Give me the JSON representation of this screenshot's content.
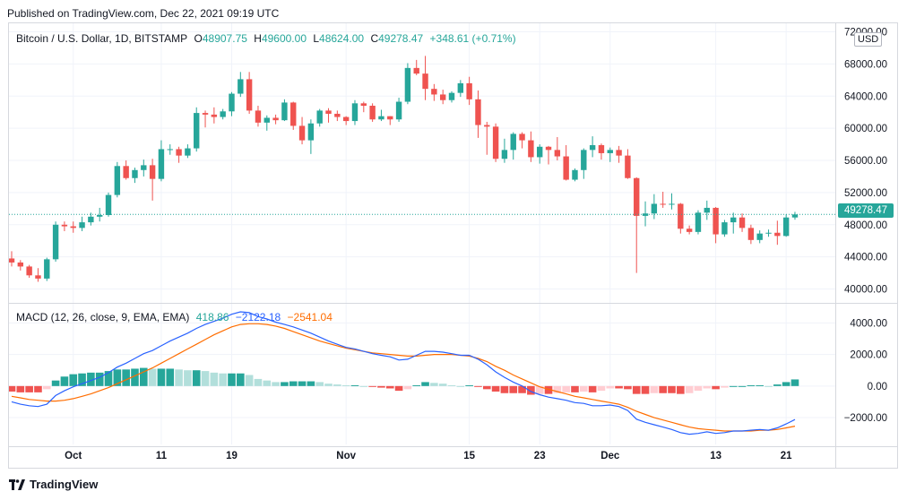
{
  "header": {
    "published": "Published on TradingView.com, Dec 22, 2021 09:19 UTC"
  },
  "legend_price": {
    "symbol": "Bitcoin / U.S. Dollar, 1D, BITSTAMP",
    "o_label": "O",
    "o_value": "48907.75",
    "h_label": "H",
    "h_value": "49600.00",
    "l_label": "L",
    "l_value": "48624.00",
    "c_label": "C",
    "c_value": "49278.47",
    "change": "+348.61 (+0.71%)"
  },
  "legend_macd": {
    "name": "MACD (12, 26, close, 9, EMA, EMA)",
    "histogram": "418.86",
    "macd": "−2122.18",
    "signal": "−2541.04"
  },
  "currency": "USD",
  "last_price_tag": "49278.47",
  "footer": {
    "brand": "TradingView"
  },
  "colors": {
    "up": "#26a69a",
    "down": "#ef5350",
    "up_light": "#b2dfdb",
    "down_light": "#ffcdd2",
    "macd_line": "#2962ff",
    "signal_line": "#ff6d00",
    "grid": "#f0f3fa"
  },
  "chart_data": [
    {
      "type": "candlestick",
      "title": "Bitcoin / U.S. Dollar, 1D, BITSTAMP",
      "ylim": [
        38500,
        72500
      ],
      "y_ticks": [
        72000,
        68000,
        64000,
        60000,
        56000,
        52000,
        48000,
        44000,
        40000
      ],
      "y_tick_labels": [
        "72000.00",
        "68000.00",
        "64000.00",
        "60000.00",
        "56000.00",
        "52000.00",
        "48000.00",
        "44000.00",
        "40000.00"
      ],
      "last_price": 49278.47,
      "x_tick_labels": [
        {
          "label": "Oct",
          "index": 7
        },
        {
          "label": "11",
          "index": 17
        },
        {
          "label": "19",
          "index": 25
        },
        {
          "label": "Nov",
          "index": 38
        },
        {
          "label": "15",
          "index": 52
        },
        {
          "label": "23",
          "index": 60
        },
        {
          "label": "Dec",
          "index": 68
        },
        {
          "label": "13",
          "index": 80
        },
        {
          "label": "21",
          "index": 88
        }
      ],
      "series": [
        [
          43800,
          43300,
          44700,
          42800
        ],
        [
          43300,
          42800,
          43600,
          42300
        ],
        [
          42800,
          41700,
          43000,
          41400
        ],
        [
          41700,
          41300,
          42600,
          40900
        ],
        [
          41300,
          43700,
          43900,
          41000
        ],
        [
          43700,
          48000,
          48400,
          43400
        ],
        [
          48000,
          47800,
          48400,
          47200
        ],
        [
          47800,
          47600,
          48400,
          47000
        ],
        [
          47600,
          48300,
          49000,
          47200
        ],
        [
          48300,
          49000,
          49500,
          47900
        ],
        [
          49000,
          49200,
          50100,
          48400
        ],
        [
          49200,
          51700,
          52000,
          49000
        ],
        [
          51700,
          55300,
          55800,
          51400
        ],
        [
          55300,
          53800,
          56000,
          53600
        ],
        [
          53800,
          54800,
          55100,
          53200
        ],
        [
          54800,
          55400,
          56100,
          54000
        ],
        [
          55400,
          53700,
          56200,
          51000
        ],
        [
          53700,
          57400,
          58500,
          53400
        ],
        [
          57400,
          57400,
          58000,
          56700
        ],
        [
          57400,
          56600,
          57700,
          55700
        ],
        [
          56600,
          57500,
          58000,
          56300
        ],
        [
          57500,
          61900,
          62600,
          57100
        ],
        [
          61900,
          61700,
          62200,
          60100
        ],
        [
          61700,
          61400,
          62600,
          60600
        ],
        [
          61400,
          62100,
          62400,
          61100
        ],
        [
          62100,
          64300,
          64500,
          61500
        ],
        [
          64300,
          66100,
          67000,
          63900
        ],
        [
          66100,
          62200,
          67000,
          61800
        ],
        [
          62200,
          60700,
          62800,
          60200
        ],
        [
          60700,
          61300,
          61600,
          59700
        ],
        [
          61300,
          61000,
          61700,
          60500
        ],
        [
          61000,
          63200,
          63600,
          60900
        ],
        [
          63200,
          60300,
          63300,
          59800
        ],
        [
          60300,
          58500,
          61400,
          58000
        ],
        [
          58500,
          60600,
          61100,
          56800
        ],
        [
          60600,
          62200,
          62400,
          60200
        ],
        [
          62200,
          61800,
          62500,
          60700
        ],
        [
          61800,
          61400,
          62200,
          60900
        ],
        [
          61400,
          60900,
          61500,
          60400
        ],
        [
          60900,
          63100,
          63500,
          60400
        ],
        [
          63100,
          62800,
          63300,
          62000
        ],
        [
          62800,
          61100,
          63100,
          60800
        ],
        [
          61100,
          61500,
          62300,
          60900
        ],
        [
          61500,
          61100,
          61500,
          60400
        ],
        [
          61100,
          63300,
          63800,
          60800
        ],
        [
          63300,
          67500,
          68100,
          63000
        ],
        [
          67500,
          66800,
          68500,
          66600
        ],
        [
          66800,
          64900,
          69000,
          63500
        ],
        [
          64900,
          64200,
          65500,
          63400
        ],
        [
          64200,
          63500,
          64800,
          63000
        ],
        [
          63500,
          64400,
          64600,
          63200
        ],
        [
          64400,
          65600,
          66000,
          63900
        ],
        [
          65600,
          63600,
          66400,
          62900
        ],
        [
          63600,
          60400,
          64700,
          58800
        ],
        [
          60400,
          60200,
          60800,
          56700
        ],
        [
          60200,
          56200,
          60600,
          55800
        ],
        [
          56200,
          57300,
          58700,
          55700
        ],
        [
          57300,
          59300,
          59500,
          56100
        ],
        [
          59300,
          58500,
          59500,
          57500
        ],
        [
          58500,
          56400,
          59600,
          55800
        ],
        [
          56400,
          57700,
          58000,
          55600
        ],
        [
          57700,
          57300,
          57800,
          55500
        ],
        [
          57300,
          56500,
          58900,
          56000
        ],
        [
          56500,
          53600,
          57900,
          53500
        ],
        [
          53600,
          54800,
          55000,
          53400
        ],
        [
          54800,
          57300,
          57500,
          53700
        ],
        [
          57300,
          57900,
          59000,
          56400
        ],
        [
          57900,
          56900,
          58100,
          56100
        ],
        [
          56900,
          57300,
          57600,
          55800
        ],
        [
          57300,
          56600,
          57800,
          55700
        ],
        [
          56600,
          53800,
          57400,
          53700
        ],
        [
          53800,
          49100,
          53900,
          42000
        ],
        [
          49100,
          49400,
          50900,
          47800
        ],
        [
          49400,
          50600,
          51800,
          48700
        ],
        [
          50600,
          50500,
          52100,
          50100
        ],
        [
          50500,
          50600,
          51900,
          49900
        ],
        [
          50600,
          47500,
          50700,
          46900
        ],
        [
          47500,
          47100,
          47900,
          46800
        ],
        [
          47100,
          49500,
          49800,
          46800
        ],
        [
          49500,
          50100,
          51000,
          48600
        ],
        [
          50100,
          46800,
          50200,
          45700
        ],
        [
          46800,
          48300,
          48600,
          46500
        ],
        [
          48300,
          48900,
          49500,
          46900
        ],
        [
          48900,
          47600,
          49400,
          47100
        ],
        [
          47600,
          46100,
          48000,
          45600
        ],
        [
          46100,
          46900,
          47300,
          45700
        ],
        [
          46900,
          47000,
          47400,
          46500
        ],
        [
          47000,
          46600,
          48500,
          45500
        ],
        [
          46600,
          48900,
          49300,
          46500
        ],
        [
          48900,
          49278.47,
          49600,
          48624
        ]
      ]
    },
    {
      "type": "macd",
      "title": "MACD (12, 26, close, 9, EMA, EMA)",
      "ylim": [
        -3700,
        5100
      ],
      "y_ticks": [
        4000,
        2000,
        0,
        -2000
      ],
      "y_tick_labels": [
        "4000.00",
        "2000.00",
        "0.00",
        "−2000.00"
      ],
      "series": [
        {
          "name": "MACD",
          "values": [
            -1000,
            -1150,
            -1250,
            -1300,
            -1150,
            -600,
            -300,
            -50,
            150,
            350,
            550,
            850,
            1200,
            1450,
            1750,
            2050,
            2250,
            2550,
            2850,
            3100,
            3350,
            3650,
            3900,
            4100,
            4300,
            4550,
            4700,
            4650,
            4400,
            4250,
            4050,
            3900,
            3750,
            3550,
            3350,
            3100,
            2850,
            2650,
            2450,
            2350,
            2200,
            2050,
            1950,
            1850,
            1650,
            1700,
            1950,
            2200,
            2200,
            2150,
            2050,
            1950,
            1950,
            1700,
            1350,
            900,
            550,
            250,
            0,
            -350,
            -550,
            -700,
            -800,
            -900,
            -1050,
            -1100,
            -1250,
            -1250,
            -1200,
            -1300,
            -1550,
            -2100,
            -2300,
            -2450,
            -2600,
            -2750,
            -2950,
            -3050,
            -3000,
            -2900,
            -3000,
            -2950,
            -2850,
            -2850,
            -2800,
            -2750,
            -2800,
            -2650,
            -2400,
            -2122.18
          ]
        },
        {
          "name": "Signal",
          "values": [
            -650,
            -750,
            -850,
            -900,
            -950,
            -950,
            -900,
            -800,
            -650,
            -500,
            -300,
            -100,
            150,
            400,
            650,
            900,
            1150,
            1450,
            1750,
            2050,
            2350,
            2650,
            2950,
            3250,
            3500,
            3750,
            3900,
            3950,
            3950,
            3900,
            3800,
            3650,
            3450,
            3250,
            3050,
            2850,
            2700,
            2550,
            2400,
            2300,
            2200,
            2100,
            2050,
            2000,
            1950,
            1900,
            1900,
            1950,
            2000,
            2000,
            2000,
            1950,
            1900,
            1750,
            1550,
            1250,
            1000,
            700,
            450,
            200,
            -50,
            -200,
            -350,
            -500,
            -650,
            -750,
            -850,
            -950,
            -1050,
            -1150,
            -1350,
            -1600,
            -1800,
            -2000,
            -2150,
            -2300,
            -2450,
            -2600,
            -2700,
            -2750,
            -2800,
            -2850,
            -2850,
            -2850,
            -2850,
            -2800,
            -2800,
            -2750,
            -2650,
            -2541.04
          ]
        },
        {
          "name": "Histogram",
          "values": [
            -350,
            -400,
            -400,
            -400,
            -200,
            350,
            600,
            750,
            800,
            850,
            850,
            950,
            1050,
            1050,
            1100,
            1150,
            1100,
            1100,
            1100,
            1050,
            1000,
            1000,
            950,
            850,
            800,
            800,
            800,
            700,
            450,
            350,
            250,
            250,
            300,
            300,
            300,
            250,
            150,
            100,
            50,
            50,
            0,
            -50,
            -100,
            -150,
            -300,
            -200,
            50,
            250,
            200,
            150,
            50,
            0,
            50,
            -50,
            -200,
            -350,
            -450,
            -450,
            -450,
            -550,
            -500,
            -500,
            -450,
            -400,
            -400,
            -350,
            -400,
            -300,
            -150,
            -150,
            -200,
            -500,
            -500,
            -450,
            -450,
            -450,
            -500,
            -450,
            -300,
            -150,
            -200,
            -100,
            0,
            0,
            50,
            50,
            0,
            100,
            250,
            418.86
          ]
        }
      ]
    }
  ]
}
